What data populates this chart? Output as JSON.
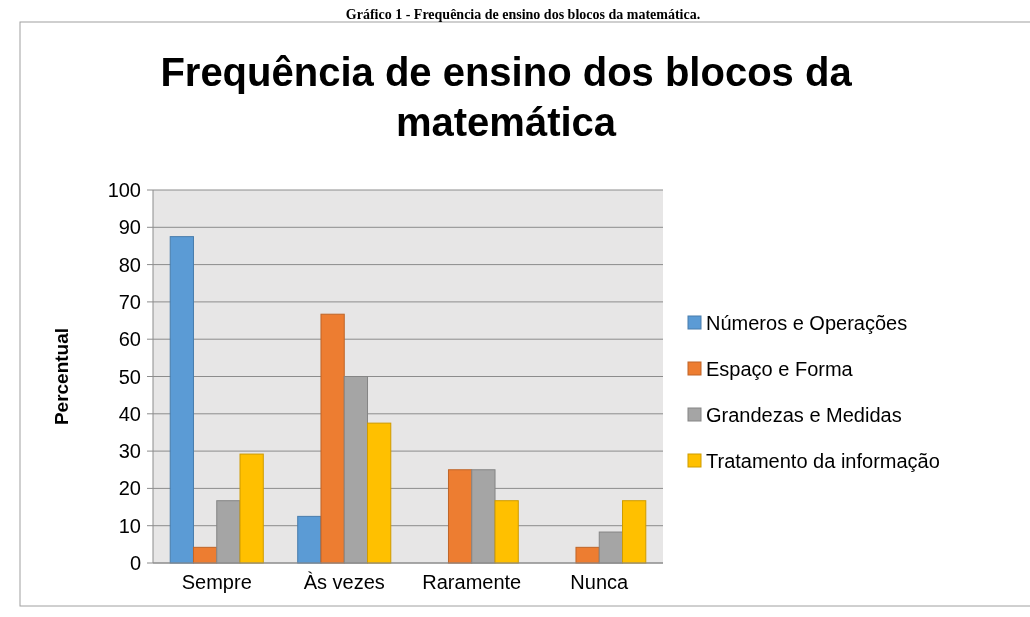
{
  "chart_data": {
    "type": "bar",
    "title": "Frequência de ensino dos blocos da matemática",
    "ylabel": "Percentual",
    "annotations": [
      "Gráfico 1 - Frequência de ensino dos blocos da matemática."
    ],
    "categories": [
      "Sempre",
      "Às vezes",
      "Raramente",
      "Nunca"
    ],
    "series": [
      {
        "name": "Números e Operações",
        "color": "#5b9bd5",
        "values": [
          87.5,
          12.5,
          0,
          0
        ]
      },
      {
        "name": "Espaço e Forma",
        "color": "#ed7d31",
        "values": [
          4.2,
          66.7,
          25,
          4.2
        ]
      },
      {
        "name": "Grandezas e Medidas",
        "color": "#a5a5a5",
        "values": [
          16.7,
          50,
          25,
          8.3
        ]
      },
      {
        "name": "Tratamento da informação",
        "color": "#ffc000",
        "values": [
          29.2,
          37.5,
          16.7,
          16.7
        ]
      }
    ],
    "ylim": [
      0,
      100
    ],
    "yticks": [
      0,
      10,
      20,
      30,
      40,
      50,
      60,
      70,
      80,
      90,
      100
    ],
    "grid": "y",
    "legend": "right"
  }
}
